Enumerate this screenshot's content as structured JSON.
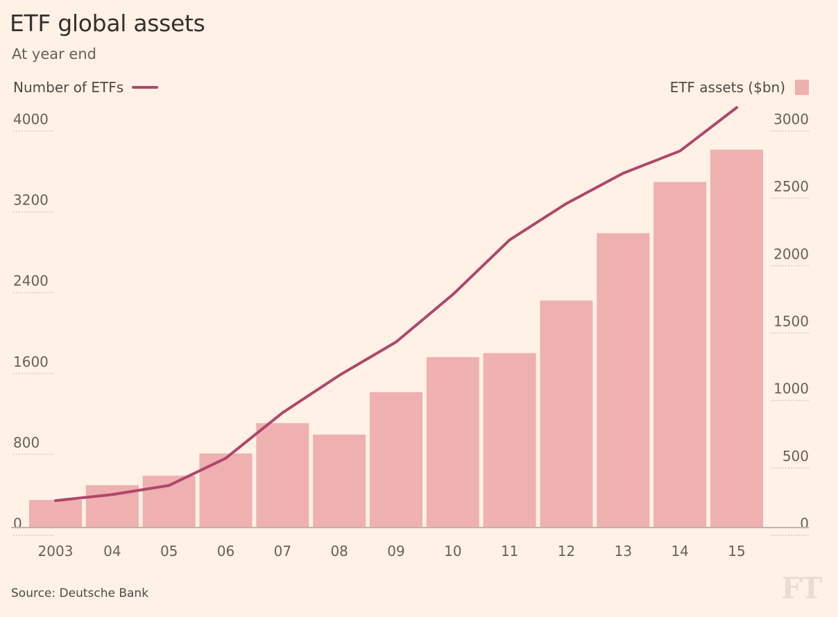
{
  "title": "ETF global assets",
  "subtitle": "At year end",
  "legend": {
    "line_label": "Number of ETFs",
    "bar_label": "ETF assets ($bn)"
  },
  "source": "Source: Deutsche Bank",
  "logo_text": "FT",
  "colors": {
    "background": "#fff1e5",
    "bar": "#efb0b0",
    "line": "#b0466b",
    "grid": "#c8bfb8",
    "axis": "#bdb4ad"
  },
  "chart_data": {
    "type": "bar",
    "categories": [
      "2003",
      "04",
      "05",
      "06",
      "07",
      "08",
      "09",
      "10",
      "11",
      "12",
      "13",
      "14",
      "15"
    ],
    "series": [
      {
        "name": "ETF assets ($bn)",
        "type": "bar",
        "axis": "right",
        "values": [
          200,
          310,
          380,
          545,
          770,
          685,
          1000,
          1260,
          1290,
          1680,
          2180,
          2560,
          2800
        ]
      },
      {
        "name": "Number of ETFs",
        "type": "line",
        "axis": "left",
        "values": [
          260,
          320,
          410,
          680,
          1130,
          1500,
          1830,
          2300,
          2840,
          3200,
          3500,
          3720,
          4150
        ]
      }
    ],
    "left_axis": {
      "ticks": [
        "4000",
        "3200",
        "2400",
        "1600",
        "800",
        "0"
      ],
      "ylim": [
        0,
        4000
      ]
    },
    "right_axis": {
      "ticks": [
        "3000",
        "2500",
        "2000",
        "1500",
        "1000",
        "500",
        "0"
      ],
      "ylim": [
        0,
        3000
      ]
    },
    "grid": false
  }
}
